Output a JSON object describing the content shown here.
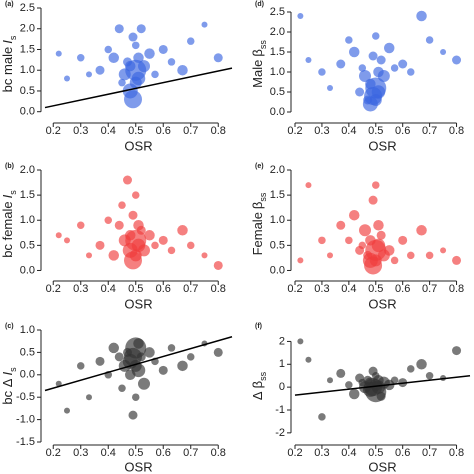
{
  "chart_data": [
    {
      "type": "scatter",
      "tag": "(a)",
      "xlabel": "OSR",
      "ylabel": "bc male",
      "ylabel_symbol": "I",
      "ylabel_sub": "s",
      "color": "#3a66e0",
      "xlim": [
        0.17,
        0.85
      ],
      "xticks": [
        0.2,
        0.3,
        0.4,
        0.5,
        0.6,
        0.7,
        0.8
      ],
      "ylim": [
        -0.2,
        2.5
      ],
      "yticks": [
        {
          "value": 0,
          "label": "0.0"
        },
        0.5,
        {
          "value": 1,
          "label": "1.0"
        },
        1.5,
        {
          "value": 2,
          "label": "2.0"
        },
        2.5
      ],
      "x": [
        0.22,
        0.25,
        0.3,
        0.33,
        0.37,
        0.4,
        0.42,
        0.44,
        0.45,
        0.46,
        0.47,
        0.48,
        0.48,
        0.49,
        0.49,
        0.5,
        0.5,
        0.5,
        0.51,
        0.51,
        0.52,
        0.53,
        0.55,
        0.57,
        0.6,
        0.63,
        0.67,
        0.7,
        0.75,
        0.8
      ],
      "y": [
        1.4,
        0.8,
        1.3,
        0.9,
        1.0,
        1.5,
        1.3,
        2.0,
        0.7,
        0.9,
        1.2,
        0.5,
        1.1,
        0.3,
        1.8,
        1.0,
        0.7,
        1.6,
        0.8,
        1.3,
        2.0,
        1.1,
        1.4,
        0.9,
        1.5,
        1.2,
        1.0,
        1.7,
        2.1,
        1.3
      ],
      "sizes": [
        2,
        2,
        3,
        2,
        4,
        3,
        5,
        4,
        3,
        6,
        4,
        8,
        5,
        10,
        4,
        12,
        6,
        3,
        7,
        5,
        4,
        6,
        5,
        3,
        4,
        3,
        5,
        3,
        2,
        4
      ],
      "trend": {
        "x": [
          0.17,
          0.85
        ],
        "y": [
          0.1,
          1.05
        ]
      }
    },
    {
      "type": "scatter",
      "tag": "(b)",
      "xlabel": "OSR",
      "ylabel": "bc female",
      "ylabel_symbol": "I",
      "ylabel_sub": "s",
      "color": "#f03c3c",
      "xlim": [
        0.17,
        0.85
      ],
      "xticks": [
        0.2,
        0.3,
        0.4,
        0.5,
        0.6,
        0.7,
        0.8
      ],
      "ylim": [
        -0.15,
        2.0
      ],
      "yticks": [
        {
          "value": 0,
          "label": "0.0"
        },
        0.5,
        {
          "value": 1,
          "label": "1.0"
        },
        1.5,
        {
          "value": 2,
          "label": "2.0"
        }
      ],
      "x": [
        0.22,
        0.25,
        0.3,
        0.33,
        0.37,
        0.4,
        0.42,
        0.44,
        0.45,
        0.46,
        0.47,
        0.48,
        0.48,
        0.49,
        0.49,
        0.5,
        0.5,
        0.5,
        0.51,
        0.51,
        0.52,
        0.53,
        0.55,
        0.57,
        0.6,
        0.63,
        0.67,
        0.7,
        0.75,
        0.8
      ],
      "y": [
        0.7,
        0.6,
        0.9,
        0.3,
        0.5,
        1.0,
        0.3,
        0.9,
        1.3,
        0.6,
        1.8,
        0.4,
        0.7,
        0.2,
        1.1,
        0.6,
        0.3,
        1.5,
        0.5,
        0.9,
        0.8,
        0.4,
        0.7,
        0.5,
        0.6,
        0.4,
        0.8,
        0.5,
        0.3,
        0.1
      ],
      "sizes": [
        2,
        2,
        3,
        2,
        4,
        3,
        5,
        4,
        3,
        6,
        4,
        8,
        5,
        10,
        4,
        12,
        6,
        3,
        7,
        5,
        4,
        6,
        5,
        3,
        4,
        3,
        5,
        3,
        2,
        4
      ]
    },
    {
      "type": "scatter",
      "tag": "(c)",
      "xlabel": "OSR",
      "ylabel": "bc Δ",
      "ylabel_symbol": "I",
      "ylabel_sub": "s",
      "color": "#333333",
      "xlim": [
        0.17,
        0.85
      ],
      "xticks": [
        0.2,
        0.3,
        0.4,
        0.5,
        0.6,
        0.7,
        0.8
      ],
      "ylim": [
        -1.5,
        1.0
      ],
      "yticks": [
        -1.5,
        {
          "value": -1,
          "label": "-1.0"
        },
        -0.5,
        {
          "value": 0,
          "label": "0.0"
        },
        0.5,
        {
          "value": 1,
          "label": "1.0"
        }
      ],
      "x": [
        0.22,
        0.25,
        0.3,
        0.33,
        0.37,
        0.4,
        0.42,
        0.44,
        0.45,
        0.46,
        0.47,
        0.48,
        0.48,
        0.49,
        0.49,
        0.5,
        0.5,
        0.5,
        0.51,
        0.51,
        0.52,
        0.53,
        0.55,
        0.57,
        0.6,
        0.63,
        0.67,
        0.7,
        0.75,
        0.8
      ],
      "y": [
        -0.2,
        -0.8,
        0.2,
        -0.5,
        0.3,
        0.0,
        0.6,
        0.4,
        -0.3,
        0.2,
        0.5,
        0.3,
        0.0,
        0.4,
        -0.9,
        0.6,
        0.2,
        -0.5,
        0.1,
        0.7,
        0.4,
        -0.2,
        0.5,
        0.3,
        0.1,
        0.6,
        0.2,
        0.4,
        0.7,
        0.5
      ],
      "sizes": [
        2,
        2,
        3,
        2,
        4,
        3,
        5,
        4,
        3,
        6,
        4,
        8,
        5,
        10,
        4,
        12,
        6,
        3,
        7,
        5,
        4,
        6,
        5,
        3,
        4,
        3,
        5,
        3,
        2,
        4
      ],
      "trend": {
        "x": [
          0.17,
          0.85
        ],
        "y": [
          -0.35,
          0.85
        ]
      }
    },
    {
      "type": "scatter",
      "tag": "(d)",
      "xlabel": "OSR",
      "ylabel": "Male",
      "ylabel_symbol": "β",
      "ylabel_sub": "ss",
      "color": "#3a66e0",
      "xlim": [
        0.2,
        0.85
      ],
      "xticks": [
        0.2,
        0.3,
        0.4,
        0.5,
        0.6,
        0.7,
        0.8
      ],
      "ylim": [
        -0.2,
        2.6
      ],
      "yticks": [
        {
          "value": 0,
          "label": "0.0"
        },
        0.5,
        {
          "value": 1,
          "label": "1.0"
        },
        1.5,
        {
          "value": 2,
          "label": "2.0"
        },
        2.5
      ],
      "x": [
        0.22,
        0.25,
        0.3,
        0.33,
        0.37,
        0.4,
        0.42,
        0.44,
        0.45,
        0.46,
        0.47,
        0.48,
        0.48,
        0.49,
        0.49,
        0.5,
        0.5,
        0.5,
        0.51,
        0.51,
        0.52,
        0.53,
        0.55,
        0.57,
        0.6,
        0.63,
        0.67,
        0.7,
        0.75,
        0.8
      ],
      "y": [
        2.4,
        1.3,
        1.0,
        0.6,
        1.2,
        1.8,
        1.5,
        0.5,
        1.1,
        0.9,
        0.3,
        0.2,
        0.7,
        0.4,
        1.4,
        0.6,
        0.3,
        1.9,
        0.5,
        1.0,
        1.3,
        0.9,
        1.6,
        1.1,
        1.2,
        1.0,
        2.4,
        1.8,
        1.5,
        1.3
      ],
      "sizes": [
        2,
        2,
        3,
        2,
        4,
        3,
        5,
        4,
        3,
        6,
        4,
        8,
        5,
        10,
        4,
        12,
        6,
        3,
        7,
        5,
        4,
        6,
        5,
        3,
        4,
        3,
        5,
        3,
        2,
        4
      ]
    },
    {
      "type": "scatter",
      "tag": "(e)",
      "xlabel": "OSR",
      "ylabel": "Female",
      "ylabel_symbol": "β",
      "ylabel_sub": "ss",
      "color": "#f03c3c",
      "xlim": [
        0.2,
        0.85
      ],
      "xticks": [
        0.2,
        0.3,
        0.4,
        0.5,
        0.6,
        0.7,
        0.8
      ],
      "ylim": [
        -0.15,
        2.0
      ],
      "yticks": [
        {
          "value": 0,
          "label": "0.0"
        },
        0.5,
        {
          "value": 1,
          "label": "1.0"
        },
        1.5,
        {
          "value": 2,
          "label": "2.0"
        }
      ],
      "x": [
        0.22,
        0.25,
        0.3,
        0.33,
        0.37,
        0.4,
        0.42,
        0.44,
        0.45,
        0.46,
        0.47,
        0.48,
        0.48,
        0.49,
        0.49,
        0.5,
        0.5,
        0.5,
        0.51,
        0.51,
        0.52,
        0.53,
        0.55,
        0.57,
        0.6,
        0.63,
        0.67,
        0.7,
        0.75,
        0.8
      ],
      "y": [
        0.2,
        1.7,
        0.6,
        0.3,
        0.9,
        0.6,
        1.1,
        0.4,
        0.5,
        0.8,
        0.3,
        0.2,
        0.6,
        0.1,
        1.4,
        0.4,
        0.2,
        1.7,
        0.5,
        0.9,
        0.7,
        0.3,
        0.4,
        0.2,
        0.6,
        0.3,
        0.8,
        0.3,
        0.4,
        0.2
      ],
      "sizes": [
        2,
        2,
        3,
        2,
        4,
        3,
        5,
        4,
        3,
        6,
        4,
        8,
        5,
        10,
        4,
        12,
        6,
        3,
        7,
        5,
        4,
        6,
        5,
        3,
        4,
        3,
        5,
        3,
        2,
        4
      ]
    },
    {
      "type": "scatter",
      "tag": "(f)",
      "xlabel": "OSR",
      "ylabel": "Δ",
      "ylabel_symbol": "β",
      "ylabel_sub": "ss",
      "color": "#333333",
      "xlim": [
        0.2,
        0.85
      ],
      "xticks": [
        0.2,
        0.3,
        0.4,
        0.5,
        0.6,
        0.7,
        0.8
      ],
      "ylim": [
        -2.4,
        2.5
      ],
      "yticks": [
        -2,
        -1,
        0,
        1,
        2
      ],
      "x": [
        0.22,
        0.25,
        0.3,
        0.33,
        0.37,
        0.4,
        0.42,
        0.44,
        0.45,
        0.46,
        0.47,
        0.48,
        0.48,
        0.49,
        0.49,
        0.5,
        0.5,
        0.5,
        0.51,
        0.51,
        0.52,
        0.53,
        0.55,
        0.57,
        0.6,
        0.63,
        0.67,
        0.7,
        0.75,
        0.8
      ],
      "y": [
        2.0,
        1.2,
        -1.3,
        0.3,
        0.6,
        0.1,
        -0.3,
        0.4,
        0.2,
        0.0,
        0.3,
        -0.1,
        0.2,
        0.0,
        0.7,
        -0.2,
        0.1,
        0.5,
        0.0,
        0.3,
        -0.4,
        0.2,
        0.1,
        0.3,
        0.2,
        0.8,
        1.0,
        0.5,
        0.4,
        1.6
      ],
      "sizes": [
        2,
        2,
        3,
        2,
        4,
        3,
        5,
        4,
        3,
        6,
        4,
        8,
        5,
        10,
        4,
        12,
        6,
        3,
        7,
        5,
        4,
        6,
        5,
        3,
        4,
        3,
        5,
        3,
        2,
        4
      ],
      "trend": {
        "x": [
          0.2,
          0.85
        ],
        "y": [
          -0.35,
          0.5
        ]
      }
    }
  ]
}
